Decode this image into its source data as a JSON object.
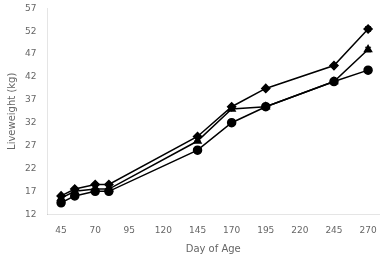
{
  "chart_data": {
    "type": "line",
    "xlabel": "Day of Age",
    "ylabel": "Liveweight (kg)",
    "xlim": [
      35,
      278
    ],
    "ylim": [
      12,
      57
    ],
    "xticks": [
      45,
      70,
      95,
      120,
      145,
      170,
      195,
      220,
      245,
      270
    ],
    "yticks": [
      12,
      17,
      22,
      27,
      32,
      37,
      42,
      47,
      52,
      57
    ],
    "grid": false,
    "series": [
      {
        "color": "#000000",
        "marker": "circle",
        "x": [
          45,
          55,
          70,
          80,
          145,
          170,
          195,
          245,
          270
        ],
        "values": [
          14.5,
          16.0,
          17.0,
          17.0,
          26.0,
          32.0,
          35.5,
          41.0,
          43.5
        ],
        "yerr": [
          0.0,
          0.0,
          0.0,
          0.0,
          0.0,
          0.0,
          0.0,
          0.0,
          0.5
        ]
      },
      {
        "color": "#000000",
        "marker": "diamond",
        "x": [
          45,
          55,
          70,
          80,
          145,
          170,
          195,
          245,
          270
        ],
        "values": [
          16.0,
          17.5,
          18.5,
          18.5,
          29.0,
          35.5,
          39.5,
          44.5,
          52.5
        ],
        "yerr": [
          0.0,
          0.0,
          0.0,
          0.0,
          0.0,
          0.0,
          0.0,
          0.0,
          0.5
        ]
      },
      {
        "color": "#000000",
        "marker": "triangle",
        "x": [
          45,
          55,
          70,
          80,
          145,
          170,
          195,
          245,
          270
        ],
        "values": [
          15.5,
          17.0,
          17.5,
          17.5,
          28.0,
          35.0,
          35.5,
          41.0,
          48.0
        ],
        "yerr": [
          0.0,
          0.0,
          0.0,
          0.0,
          0.0,
          0.0,
          0.0,
          0.0,
          0.5
        ]
      }
    ]
  }
}
